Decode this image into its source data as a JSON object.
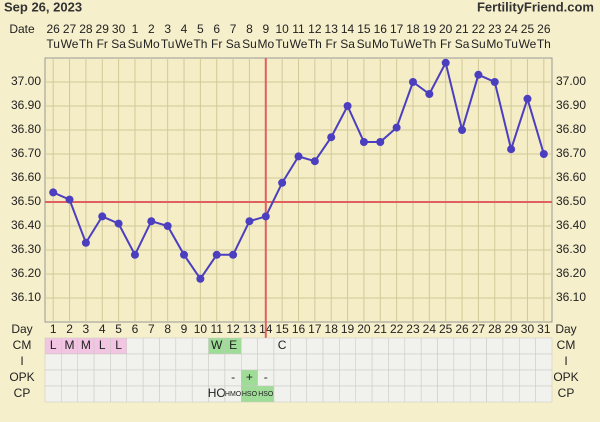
{
  "chart_data": {
    "type": "line",
    "title": "Sep 26, 2023",
    "site": "FertilityFriend.com",
    "date_label": "Date",
    "day_label": "Day",
    "categories": [
      "26",
      "27",
      "28",
      "29",
      "30",
      "1",
      "2",
      "3",
      "4",
      "5",
      "6",
      "7",
      "8",
      "9",
      "10",
      "11",
      "12",
      "13",
      "14",
      "15",
      "16",
      "17",
      "18",
      "19",
      "20",
      "21",
      "22",
      "23",
      "24",
      "25",
      "26"
    ],
    "weekdays": [
      "Tu",
      "We",
      "Th",
      "Fr",
      "Sa",
      "Su",
      "Mo",
      "Tu",
      "We",
      "Th",
      "Fr",
      "Sa",
      "Su",
      "Mo",
      "Tu",
      "We",
      "Th",
      "Fr",
      "Sa",
      "Su",
      "Mo",
      "Tu",
      "We",
      "Th",
      "Fr",
      "Sa",
      "Su",
      "Mo",
      "Tu",
      "We",
      "Th"
    ],
    "cycle_days": [
      1,
      2,
      3,
      4,
      5,
      6,
      7,
      8,
      9,
      10,
      11,
      12,
      13,
      14,
      15,
      16,
      17,
      18,
      19,
      20,
      21,
      22,
      23,
      24,
      25,
      26,
      27,
      28,
      29,
      30,
      31
    ],
    "values": [
      36.54,
      36.51,
      36.33,
      36.44,
      36.41,
      36.28,
      36.42,
      36.4,
      36.28,
      36.18,
      36.28,
      36.28,
      36.42,
      36.44,
      36.58,
      36.69,
      36.67,
      36.77,
      36.9,
      36.75,
      36.75,
      36.81,
      37.0,
      36.95,
      37.08,
      36.8,
      37.03,
      37.0,
      36.72,
      36.93,
      36.7
    ],
    "color": "#4b3fbf",
    "ylim": [
      36.0,
      37.1
    ],
    "yticks": [
      {
        "value": 36.1,
        "label": "36.10"
      },
      {
        "value": 36.2,
        "label": "36.20"
      },
      {
        "value": 36.3,
        "label": "36.30"
      },
      {
        "value": 36.4,
        "label": "36.40"
      },
      {
        "value": 36.5,
        "label": "36.50"
      },
      {
        "value": 36.6,
        "label": "36.60"
      },
      {
        "value": 36.7,
        "label": "36.70"
      },
      {
        "value": 36.8,
        "label": "36.80"
      },
      {
        "value": 36.9,
        "label": "36.90"
      },
      {
        "value": 37.0,
        "label": "37.00"
      }
    ],
    "grid": true,
    "coverline": 36.5,
    "ovulation_day": 14,
    "marker_color": "#e06060",
    "rows": [
      {
        "label": "CM",
        "cells": [
          "L",
          "M",
          "M",
          "L",
          "L",
          null,
          null,
          null,
          null,
          null,
          "W",
          "E",
          null,
          null,
          "C",
          null,
          null,
          null,
          null,
          null,
          null,
          null,
          null,
          null,
          null,
          null,
          null,
          null,
          null,
          null,
          null
        ],
        "cell_colors": [
          "#f2c6e2",
          "#f2c6e2",
          "#f2c6e2",
          "#f2c6e2",
          "#f2c6e2",
          null,
          null,
          null,
          null,
          null,
          "#9fdc98",
          "#9fdc98",
          null,
          null,
          null,
          null,
          null,
          null,
          null,
          null,
          null,
          null,
          null,
          null,
          null,
          null,
          null,
          null,
          null,
          null,
          null
        ]
      },
      {
        "label": "I",
        "cells": [
          null,
          null,
          null,
          null,
          null,
          null,
          null,
          null,
          null,
          null,
          null,
          null,
          null,
          null,
          null,
          null,
          null,
          null,
          null,
          null,
          null,
          null,
          null,
          null,
          null,
          null,
          null,
          null,
          null,
          null,
          null
        ],
        "cell_colors": [
          null,
          null,
          null,
          null,
          null,
          null,
          null,
          null,
          null,
          null,
          null,
          null,
          null,
          null,
          null,
          null,
          null,
          null,
          null,
          null,
          null,
          null,
          null,
          null,
          null,
          null,
          null,
          null,
          null,
          null,
          null
        ]
      },
      {
        "label": "OPK",
        "cells": [
          null,
          null,
          null,
          null,
          null,
          null,
          null,
          null,
          null,
          null,
          null,
          "-",
          "+",
          "-",
          null,
          null,
          null,
          null,
          null,
          null,
          null,
          null,
          null,
          null,
          null,
          null,
          null,
          null,
          null,
          null,
          null
        ],
        "cell_colors": [
          null,
          null,
          null,
          null,
          null,
          null,
          null,
          null,
          null,
          null,
          null,
          null,
          "#9fdc98",
          null,
          null,
          null,
          null,
          null,
          null,
          null,
          null,
          null,
          null,
          null,
          null,
          null,
          null,
          null,
          null,
          null,
          null
        ]
      },
      {
        "label": "CP",
        "cells": [
          null,
          null,
          null,
          null,
          null,
          null,
          null,
          null,
          null,
          null,
          "HO",
          "HMO",
          "HSO",
          "HSO",
          null,
          null,
          null,
          null,
          null,
          null,
          null,
          null,
          null,
          null,
          null,
          null,
          null,
          null,
          null,
          null,
          null
        ],
        "cell_colors": [
          null,
          null,
          null,
          null,
          null,
          null,
          null,
          null,
          null,
          null,
          null,
          null,
          "#9fdc98",
          "#9fdc98",
          null,
          null,
          null,
          null,
          null,
          null,
          null,
          null,
          null,
          null,
          null,
          null,
          null,
          null,
          null,
          null,
          null
        ]
      }
    ]
  }
}
